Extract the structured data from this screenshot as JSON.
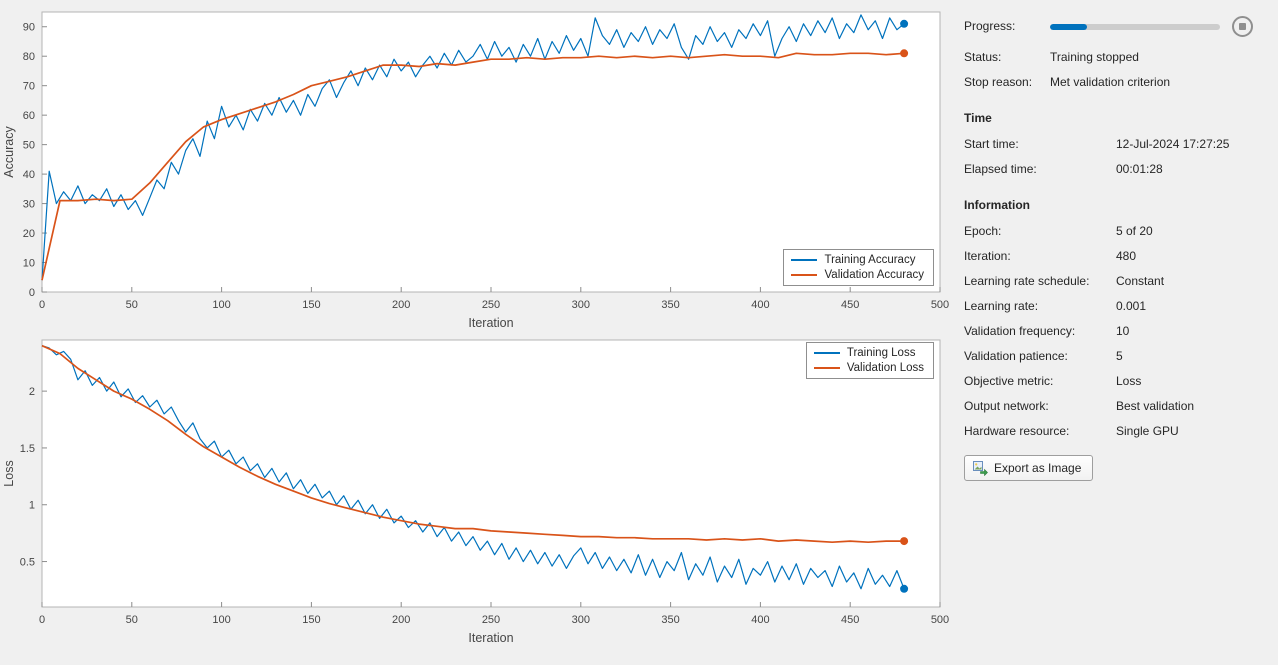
{
  "colors": {
    "training_line": "#0072BD",
    "validation_line": "#D95319",
    "progress_fill": "#0072BD",
    "background": "#f0f0f0",
    "plot_background": "#ffffff"
  },
  "chart_data": [
    {
      "name": "accuracy",
      "type": "line",
      "xlabel": "Iteration",
      "ylabel": "Accuracy",
      "xlim": [
        0,
        500
      ],
      "ylim": [
        0,
        95
      ],
      "xticks": [
        0,
        50,
        100,
        150,
        200,
        250,
        300,
        350,
        400,
        450,
        500
      ],
      "yticks": [
        0,
        10,
        20,
        30,
        40,
        50,
        60,
        70,
        80,
        90
      ],
      "grid": false,
      "legend_position": "bottom-right",
      "series": [
        {
          "key": "training-accuracy",
          "name": "Training Accuracy",
          "color": "#0072BD",
          "width": 1.2,
          "end_marker": true,
          "x_start": 0,
          "x_step": 4,
          "y": [
            4,
            41,
            30,
            34,
            31,
            36,
            30,
            33,
            31,
            35,
            29,
            33,
            28,
            31,
            26,
            32,
            38,
            35,
            44,
            40,
            48,
            52,
            46,
            58,
            52,
            63,
            56,
            60,
            55,
            62,
            58,
            64,
            60,
            66,
            61,
            65,
            60,
            67,
            63,
            69,
            72,
            66,
            71,
            75,
            70,
            76,
            72,
            77,
            73,
            79,
            75,
            78,
            73,
            77,
            80,
            76,
            81,
            77,
            82,
            78,
            80,
            84,
            79,
            85,
            80,
            83,
            78,
            84,
            80,
            86,
            79,
            85,
            81,
            87,
            82,
            86,
            80,
            93,
            87,
            84,
            89,
            83,
            88,
            85,
            90,
            84,
            89,
            86,
            91,
            83,
            79,
            87,
            84,
            90,
            85,
            88,
            83,
            89,
            86,
            91,
            87,
            92,
            80,
            86,
            90,
            85,
            91,
            87,
            92,
            88,
            93,
            86,
            91,
            88,
            94,
            89,
            92,
            86,
            93,
            89,
            91
          ]
        },
        {
          "key": "validation-accuracy",
          "name": "Validation Accuracy",
          "color": "#D95319",
          "width": 1.7,
          "end_marker": true,
          "x": [
            0,
            10,
            20,
            30,
            40,
            50,
            60,
            70,
            80,
            90,
            100,
            110,
            120,
            130,
            140,
            150,
            160,
            170,
            180,
            190,
            200,
            210,
            220,
            230,
            240,
            250,
            260,
            270,
            280,
            290,
            300,
            310,
            320,
            330,
            340,
            350,
            360,
            370,
            380,
            390,
            400,
            410,
            420,
            430,
            440,
            450,
            460,
            470,
            480
          ],
          "y": [
            4,
            31,
            31,
            31.5,
            31,
            31.5,
            37,
            44,
            51,
            56,
            58.5,
            60.5,
            62.5,
            64.5,
            67,
            70,
            71.5,
            73,
            75,
            77,
            77,
            76.5,
            77.5,
            77,
            78,
            79,
            79,
            79.5,
            79,
            79.5,
            79.5,
            80,
            79.5,
            80,
            79.5,
            80,
            79.5,
            80,
            80.5,
            80,
            80,
            79.5,
            81,
            80.5,
            80.5,
            81,
            81,
            80.5,
            81
          ]
        }
      ]
    },
    {
      "name": "loss",
      "type": "line",
      "xlabel": "Iteration",
      "ylabel": "Loss",
      "xlim": [
        0,
        500
      ],
      "ylim": [
        0.1,
        2.45
      ],
      "xticks": [
        0,
        50,
        100,
        150,
        200,
        250,
        300,
        350,
        400,
        450,
        500
      ],
      "yticks": [
        0.5,
        1,
        1.5,
        2
      ],
      "grid": false,
      "legend_position": "top-right",
      "series": [
        {
          "key": "training-loss",
          "name": "Training Loss",
          "color": "#0072BD",
          "width": 1.2,
          "end_marker": true,
          "x_start": 0,
          "x_step": 4,
          "y": [
            2.4,
            2.38,
            2.32,
            2.35,
            2.28,
            2.1,
            2.18,
            2.05,
            2.12,
            2.0,
            2.08,
            1.95,
            2.02,
            1.9,
            1.96,
            1.86,
            1.92,
            1.8,
            1.86,
            1.74,
            1.64,
            1.72,
            1.58,
            1.5,
            1.56,
            1.42,
            1.48,
            1.36,
            1.42,
            1.3,
            1.36,
            1.24,
            1.32,
            1.2,
            1.28,
            1.14,
            1.22,
            1.1,
            1.18,
            1.06,
            1.12,
            1.0,
            1.08,
            0.96,
            1.04,
            0.92,
            1.0,
            0.88,
            0.96,
            0.84,
            0.9,
            0.8,
            0.86,
            0.76,
            0.84,
            0.72,
            0.8,
            0.68,
            0.76,
            0.64,
            0.72,
            0.6,
            0.68,
            0.56,
            0.66,
            0.52,
            0.62,
            0.5,
            0.6,
            0.48,
            0.58,
            0.46,
            0.56,
            0.44,
            0.55,
            0.62,
            0.48,
            0.58,
            0.44,
            0.54,
            0.42,
            0.52,
            0.4,
            0.56,
            0.38,
            0.52,
            0.36,
            0.5,
            0.42,
            0.58,
            0.34,
            0.48,
            0.38,
            0.54,
            0.32,
            0.46,
            0.36,
            0.52,
            0.3,
            0.44,
            0.38,
            0.5,
            0.32,
            0.46,
            0.34,
            0.48,
            0.3,
            0.44,
            0.36,
            0.42,
            0.28,
            0.46,
            0.32,
            0.4,
            0.26,
            0.44,
            0.3,
            0.38,
            0.28,
            0.42,
            0.26
          ]
        },
        {
          "key": "validation-loss",
          "name": "Validation Loss",
          "color": "#D95319",
          "width": 1.7,
          "end_marker": true,
          "x": [
            0,
            10,
            20,
            30,
            40,
            50,
            60,
            70,
            80,
            90,
            100,
            110,
            120,
            130,
            140,
            150,
            160,
            170,
            180,
            190,
            200,
            210,
            220,
            230,
            240,
            250,
            260,
            270,
            280,
            290,
            300,
            310,
            320,
            330,
            340,
            350,
            360,
            370,
            380,
            390,
            400,
            410,
            420,
            430,
            440,
            450,
            460,
            470,
            480
          ],
          "y": [
            2.4,
            2.33,
            2.2,
            2.1,
            2.0,
            1.93,
            1.84,
            1.74,
            1.62,
            1.51,
            1.42,
            1.33,
            1.25,
            1.18,
            1.12,
            1.06,
            1.01,
            0.97,
            0.93,
            0.89,
            0.86,
            0.83,
            0.81,
            0.79,
            0.79,
            0.77,
            0.76,
            0.75,
            0.74,
            0.73,
            0.72,
            0.72,
            0.71,
            0.71,
            0.7,
            0.7,
            0.7,
            0.69,
            0.7,
            0.69,
            0.7,
            0.68,
            0.69,
            0.68,
            0.67,
            0.68,
            0.67,
            0.68,
            0.68
          ]
        }
      ]
    }
  ],
  "panel": {
    "progress_label": "Progress:",
    "progress_percent": 22,
    "status_label": "Status:",
    "status_value": "Training stopped",
    "stop_reason_label": "Stop reason:",
    "stop_reason_value": "Met validation criterion",
    "time_header": "Time",
    "rows_time": [
      {
        "label": "Start time:",
        "value": "12-Jul-2024 17:27:25"
      },
      {
        "label": "Elapsed time:",
        "value": "00:01:28"
      }
    ],
    "info_header": "Information",
    "rows_info": [
      {
        "label": "Epoch:",
        "value": "5 of 20"
      },
      {
        "label": "Iteration:",
        "value": "480"
      },
      {
        "label": "Learning rate schedule:",
        "value": "Constant"
      },
      {
        "label": "Learning rate:",
        "value": "0.001"
      },
      {
        "label": "Validation frequency:",
        "value": "10"
      },
      {
        "label": "Validation patience:",
        "value": "5"
      },
      {
        "label": "Objective metric:",
        "value": "Loss"
      },
      {
        "label": "Output network:",
        "value": "Best validation"
      },
      {
        "label": "Hardware resource:",
        "value": "Single GPU"
      }
    ],
    "export_button": "Export as Image"
  }
}
